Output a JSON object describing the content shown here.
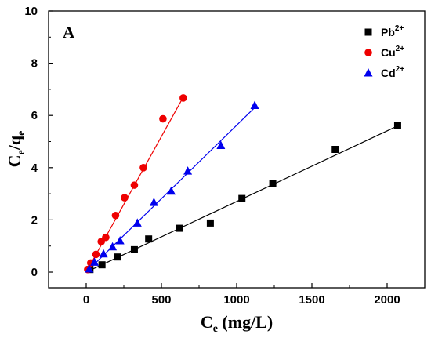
{
  "chart_data": {
    "type": "scatter",
    "panel_label": "A",
    "xlabel_main": "C",
    "xlabel_sub": "e",
    "xlabel_unit": " (mg/L)",
    "ylabel_num_main": "C",
    "ylabel_num_sub": "e",
    "ylabel_slash": "/q",
    "ylabel_den_sub": "e",
    "xlim": [
      -250,
      2250
    ],
    "ylim": [
      -0.6,
      10
    ],
    "xticks": [
      0,
      500,
      1000,
      1500,
      2000
    ],
    "yticks": [
      0,
      2,
      4,
      6,
      8,
      10
    ],
    "legend_position": "top-right",
    "series": [
      {
        "name": "Pb",
        "charge": "2+",
        "marker": "square",
        "color": "#000000",
        "x": [
          25,
          105,
          210,
          320,
          415,
          620,
          825,
          1035,
          1240,
          1655,
          2070
        ],
        "y": [
          0.1,
          0.28,
          0.58,
          0.86,
          1.27,
          1.68,
          1.88,
          2.82,
          3.4,
          4.7,
          5.63
        ],
        "fit": [
          0,
          2070,
          0.0,
          5.6
        ]
      },
      {
        "name": "Cu",
        "charge": "2+",
        "marker": "circle",
        "color": "#ee0000",
        "x": [
          10,
          30,
          65,
          100,
          130,
          195,
          255,
          320,
          380,
          510,
          645
        ],
        "y": [
          0.1,
          0.35,
          0.68,
          1.17,
          1.33,
          2.17,
          2.85,
          3.33,
          4.0,
          5.87,
          6.67
        ],
        "fit": [
          0,
          645,
          0.0,
          6.7
        ]
      },
      {
        "name": "Cd",
        "charge": "2+",
        "marker": "triangle",
        "color": "#0000ee",
        "x": [
          20,
          55,
          115,
          175,
          225,
          340,
          450,
          565,
          675,
          895,
          1120
        ],
        "y": [
          0.12,
          0.38,
          0.7,
          0.97,
          1.2,
          1.88,
          2.67,
          3.1,
          3.87,
          4.85,
          6.38
        ],
        "fit": [
          0,
          1120,
          0.0,
          6.3
        ]
      }
    ]
  }
}
